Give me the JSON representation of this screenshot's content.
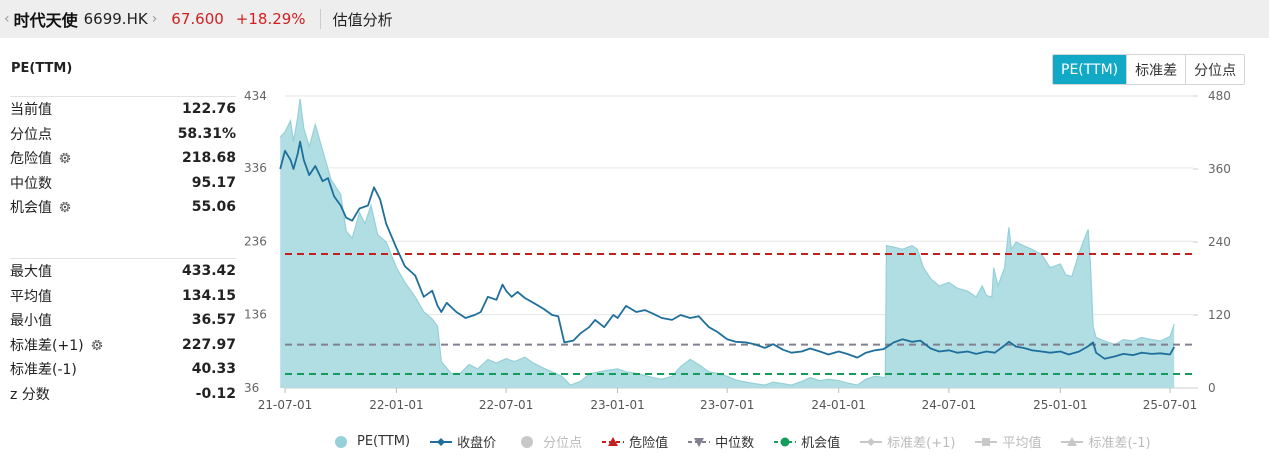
{
  "header": {
    "back_chevron": "‹",
    "stock_name": "时代天使",
    "stock_code": "6699.HK",
    "forward_chevron": "›",
    "price": "67.600",
    "change_pct": "+18.29%",
    "section": "估值分析"
  },
  "panel": {
    "title": "PE(TTM)",
    "stats_top": [
      {
        "label": "当前值",
        "value": "122.76",
        "gear": false
      },
      {
        "label": "分位点",
        "value": "58.31%",
        "gear": false
      },
      {
        "label": "危险值",
        "value": "218.68",
        "gear": true
      },
      {
        "label": "中位数",
        "value": "95.17",
        "gear": false
      },
      {
        "label": "机会值",
        "value": "55.06",
        "gear": true
      }
    ],
    "stats_bottom": [
      {
        "label": "最大值",
        "value": "433.42",
        "gear": false
      },
      {
        "label": "平均值",
        "value": "134.15",
        "gear": false
      },
      {
        "label": "最小值",
        "value": "36.57",
        "gear": false
      },
      {
        "label": "标准差(+1)",
        "value": "227.97",
        "gear": true
      },
      {
        "label": "标准差(-1)",
        "value": "40.33",
        "gear": false
      },
      {
        "label": "z 分数",
        "value": "-0.12",
        "gear": false
      }
    ]
  },
  "tabs": [
    {
      "label": "PE(TTM)",
      "active": true
    },
    {
      "label": "标准差",
      "active": false
    },
    {
      "label": "分位点",
      "active": false
    }
  ],
  "colors": {
    "pe_fill": "#acdce2",
    "pe_line": "#96d0d8",
    "close_line": "#1e6f9c",
    "danger": "#c21f1f",
    "median": "#808090",
    "opportunity": "#169c5a",
    "tab_active": "#12a9c6",
    "up": "#d12020",
    "disabled": "#c8c8c8"
  },
  "chart_data": {
    "type": "area",
    "x_ticks": [
      "21-07-01",
      "22-01-01",
      "22-07-01",
      "23-01-01",
      "23-07-01",
      "24-01-01",
      "24-07-01",
      "25-01-01",
      "25-07-01"
    ],
    "left_axis": {
      "ticks": [
        434,
        336,
        236,
        136,
        36
      ],
      "range": [
        36,
        434
      ]
    },
    "right_axis": {
      "ticks": [
        480,
        360,
        240,
        120,
        0
      ],
      "range": [
        0,
        480
      ]
    },
    "reference_lines": {
      "danger": 218.68,
      "median": 95.17,
      "opportunity": 55.06
    },
    "series": [
      {
        "name": "PE(TTM)",
        "axis": "left",
        "points": [
          [
            "2021-06-23",
            378
          ],
          [
            "2021-07-01",
            385
          ],
          [
            "2021-07-10",
            400
          ],
          [
            "2021-07-15",
            372
          ],
          [
            "2021-07-22",
            405
          ],
          [
            "2021-07-26",
            430
          ],
          [
            "2021-08-01",
            390
          ],
          [
            "2021-08-10",
            365
          ],
          [
            "2021-08-20",
            395
          ],
          [
            "2021-09-01",
            360
          ],
          [
            "2021-09-15",
            320
          ],
          [
            "2021-10-01",
            300
          ],
          [
            "2021-10-10",
            250
          ],
          [
            "2021-10-20",
            240
          ],
          [
            "2021-11-01",
            275
          ],
          [
            "2021-11-10",
            260
          ],
          [
            "2021-11-20",
            285
          ],
          [
            "2021-12-01",
            245
          ],
          [
            "2021-12-15",
            235
          ],
          [
            "2022-01-01",
            200
          ],
          [
            "2022-01-15",
            180
          ],
          [
            "2022-02-01",
            160
          ],
          [
            "2022-02-15",
            140
          ],
          [
            "2022-03-01",
            130
          ],
          [
            "2022-03-10",
            120
          ],
          [
            "2022-03-16",
            72
          ],
          [
            "2022-04-01",
            56
          ],
          [
            "2022-04-15",
            55
          ],
          [
            "2022-05-01",
            68
          ],
          [
            "2022-05-15",
            62
          ],
          [
            "2022-06-01",
            75
          ],
          [
            "2022-06-15",
            70
          ],
          [
            "2022-07-01",
            76
          ],
          [
            "2022-07-15",
            72
          ],
          [
            "2022-08-01",
            78
          ],
          [
            "2022-08-15",
            70
          ],
          [
            "2022-09-01",
            63
          ],
          [
            "2022-09-15",
            58
          ],
          [
            "2022-10-01",
            52
          ],
          [
            "2022-10-15",
            40
          ],
          [
            "2022-11-01",
            45
          ],
          [
            "2022-11-15",
            55
          ],
          [
            "2022-12-01",
            58
          ],
          [
            "2022-12-15",
            60
          ],
          [
            "2023-01-01",
            62
          ],
          [
            "2023-01-15",
            58
          ],
          [
            "2023-02-01",
            56
          ],
          [
            "2023-02-15",
            53
          ],
          [
            "2023-03-01",
            50
          ],
          [
            "2023-03-15",
            48
          ],
          [
            "2023-04-01",
            52
          ],
          [
            "2023-04-15",
            65
          ],
          [
            "2023-05-01",
            75
          ],
          [
            "2023-05-15",
            68
          ],
          [
            "2023-06-01",
            58
          ],
          [
            "2023-06-15",
            56
          ],
          [
            "2023-07-01",
            52
          ],
          [
            "2023-07-15",
            47
          ],
          [
            "2023-08-01",
            44
          ],
          [
            "2023-08-15",
            42
          ],
          [
            "2023-09-01",
            40
          ],
          [
            "2023-09-15",
            44
          ],
          [
            "2023-10-01",
            42
          ],
          [
            "2023-10-15",
            40
          ],
          [
            "2023-11-01",
            45
          ],
          [
            "2023-11-15",
            50
          ],
          [
            "2023-12-01",
            46
          ],
          [
            "2023-12-15",
            48
          ],
          [
            "2024-01-01",
            46
          ],
          [
            "2024-01-15",
            43
          ],
          [
            "2024-02-01",
            40
          ],
          [
            "2024-02-15",
            48
          ],
          [
            "2024-03-01",
            52
          ],
          [
            "2024-03-18",
            50
          ],
          [
            "2024-03-20",
            230
          ],
          [
            "2024-04-01",
            228
          ],
          [
            "2024-04-15",
            225
          ],
          [
            "2024-05-01",
            230
          ],
          [
            "2024-05-10",
            225
          ],
          [
            "2024-05-20",
            200
          ],
          [
            "2024-06-01",
            185
          ],
          [
            "2024-06-15",
            175
          ],
          [
            "2024-07-01",
            180
          ],
          [
            "2024-07-15",
            172
          ],
          [
            "2024-08-01",
            168
          ],
          [
            "2024-08-15",
            160
          ],
          [
            "2024-08-25",
            175
          ],
          [
            "2024-09-01",
            162
          ],
          [
            "2024-09-10",
            160
          ],
          [
            "2024-09-13",
            200
          ],
          [
            "2024-09-20",
            175
          ],
          [
            "2024-10-01",
            200
          ],
          [
            "2024-10-08",
            255
          ],
          [
            "2024-10-12",
            225
          ],
          [
            "2024-10-20",
            235
          ],
          [
            "2024-11-01",
            230
          ],
          [
            "2024-11-15",
            225
          ],
          [
            "2024-12-01",
            218
          ],
          [
            "2024-12-15",
            200
          ],
          [
            "2025-01-01",
            205
          ],
          [
            "2025-01-10",
            190
          ],
          [
            "2025-01-20",
            188
          ],
          [
            "2025-02-01",
            220
          ],
          [
            "2025-02-10",
            240
          ],
          [
            "2025-02-16",
            252
          ],
          [
            "2025-02-20",
            200
          ],
          [
            "2025-02-24",
            120
          ],
          [
            "2025-03-01",
            105
          ],
          [
            "2025-03-15",
            100
          ],
          [
            "2025-04-01",
            95
          ],
          [
            "2025-04-15",
            102
          ],
          [
            "2025-05-01",
            100
          ],
          [
            "2025-05-15",
            105
          ],
          [
            "2025-06-01",
            102
          ],
          [
            "2025-06-15",
            100
          ],
          [
            "2025-07-01",
            106
          ],
          [
            "2025-07-08",
            122.76
          ]
        ]
      },
      {
        "name": "收盘价",
        "axis": "right",
        "points": [
          [
            "2021-06-23",
            360
          ],
          [
            "2021-07-01",
            390
          ],
          [
            "2021-07-10",
            375
          ],
          [
            "2021-07-15",
            360
          ],
          [
            "2021-07-22",
            385
          ],
          [
            "2021-07-26",
            405
          ],
          [
            "2021-08-01",
            375
          ],
          [
            "2021-08-10",
            350
          ],
          [
            "2021-08-20",
            365
          ],
          [
            "2021-09-01",
            340
          ],
          [
            "2021-09-10",
            345
          ],
          [
            "2021-09-20",
            315
          ],
          [
            "2021-10-01",
            300
          ],
          [
            "2021-10-10",
            280
          ],
          [
            "2021-10-20",
            275
          ],
          [
            "2021-11-01",
            295
          ],
          [
            "2021-11-15",
            300
          ],
          [
            "2021-11-25",
            330
          ],
          [
            "2021-12-05",
            310
          ],
          [
            "2021-12-15",
            270
          ],
          [
            "2022-01-01",
            230
          ],
          [
            "2022-01-15",
            200
          ],
          [
            "2022-02-01",
            185
          ],
          [
            "2022-02-15",
            150
          ],
          [
            "2022-03-01",
            160
          ],
          [
            "2022-03-10",
            135
          ],
          [
            "2022-03-16",
            125
          ],
          [
            "2022-03-25",
            140
          ],
          [
            "2022-04-10",
            125
          ],
          [
            "2022-04-25",
            115
          ],
          [
            "2022-05-10",
            120
          ],
          [
            "2022-05-20",
            125
          ],
          [
            "2022-06-01",
            150
          ],
          [
            "2022-06-15",
            145
          ],
          [
            "2022-06-25",
            170
          ],
          [
            "2022-07-01",
            160
          ],
          [
            "2022-07-10",
            150
          ],
          [
            "2022-07-20",
            158
          ],
          [
            "2022-08-01",
            148
          ],
          [
            "2022-08-15",
            140
          ],
          [
            "2022-09-01",
            130
          ],
          [
            "2022-09-15",
            120
          ],
          [
            "2022-09-25",
            118
          ],
          [
            "2022-10-05",
            75
          ],
          [
            "2022-10-20",
            78
          ],
          [
            "2022-11-01",
            90
          ],
          [
            "2022-11-15",
            100
          ],
          [
            "2022-11-25",
            112
          ],
          [
            "2022-12-10",
            100
          ],
          [
            "2022-12-25",
            120
          ],
          [
            "2023-01-01",
            115
          ],
          [
            "2023-01-15",
            135
          ],
          [
            "2023-02-01",
            125
          ],
          [
            "2023-02-15",
            128
          ],
          [
            "2023-03-01",
            122
          ],
          [
            "2023-03-15",
            115
          ],
          [
            "2023-04-01",
            112
          ],
          [
            "2023-04-15",
            120
          ],
          [
            "2023-05-01",
            115
          ],
          [
            "2023-05-15",
            118
          ],
          [
            "2023-06-01",
            100
          ],
          [
            "2023-06-15",
            92
          ],
          [
            "2023-07-01",
            80
          ],
          [
            "2023-07-15",
            76
          ],
          [
            "2023-08-01",
            75
          ],
          [
            "2023-08-15",
            72
          ],
          [
            "2023-09-01",
            66
          ],
          [
            "2023-09-15",
            72
          ],
          [
            "2023-10-01",
            63
          ],
          [
            "2023-10-15",
            58
          ],
          [
            "2023-11-01",
            60
          ],
          [
            "2023-11-15",
            65
          ],
          [
            "2023-12-01",
            60
          ],
          [
            "2023-12-15",
            55
          ],
          [
            "2024-01-01",
            60
          ],
          [
            "2024-01-15",
            56
          ],
          [
            "2024-02-01",
            50
          ],
          [
            "2024-02-15",
            58
          ],
          [
            "2024-03-01",
            62
          ],
          [
            "2024-03-15",
            64
          ],
          [
            "2024-04-01",
            75
          ],
          [
            "2024-04-15",
            80
          ],
          [
            "2024-05-01",
            76
          ],
          [
            "2024-05-15",
            78
          ],
          [
            "2024-06-01",
            65
          ],
          [
            "2024-06-15",
            60
          ],
          [
            "2024-07-01",
            62
          ],
          [
            "2024-07-15",
            58
          ],
          [
            "2024-08-01",
            60
          ],
          [
            "2024-08-15",
            56
          ],
          [
            "2024-09-01",
            60
          ],
          [
            "2024-09-15",
            58
          ],
          [
            "2024-10-01",
            70
          ],
          [
            "2024-10-08",
            76
          ],
          [
            "2024-10-20",
            68
          ],
          [
            "2024-11-01",
            66
          ],
          [
            "2024-11-15",
            62
          ],
          [
            "2024-12-01",
            60
          ],
          [
            "2024-12-15",
            58
          ],
          [
            "2025-01-01",
            60
          ],
          [
            "2025-01-15",
            55
          ],
          [
            "2025-02-01",
            60
          ],
          [
            "2025-02-15",
            68
          ],
          [
            "2025-02-24",
            75
          ],
          [
            "2025-03-01",
            58
          ],
          [
            "2025-03-15",
            48
          ],
          [
            "2025-04-01",
            52
          ],
          [
            "2025-04-15",
            56
          ],
          [
            "2025-05-01",
            54
          ],
          [
            "2025-05-15",
            58
          ],
          [
            "2025-06-01",
            56
          ],
          [
            "2025-06-15",
            57
          ],
          [
            "2025-07-01",
            55
          ],
          [
            "2025-07-08",
            67.6
          ]
        ]
      }
    ],
    "legend": [
      {
        "name": "PE(TTM)",
        "shape": "circle",
        "color": "#96d0d8",
        "enabled": true
      },
      {
        "name": "收盘价",
        "shape": "line-diamond",
        "color": "#1e6f9c",
        "enabled": true
      },
      {
        "name": "分位点",
        "shape": "circle",
        "color": "#c8c8c8",
        "enabled": false
      },
      {
        "name": "危险值",
        "shape": "dash-triangle-up",
        "color": "#c21f1f",
        "enabled": true
      },
      {
        "name": "中位数",
        "shape": "dash-triangle-down",
        "color": "#808090",
        "enabled": true
      },
      {
        "name": "机会值",
        "shape": "dash-circle",
        "color": "#169c5a",
        "enabled": true
      },
      {
        "name": "标准差(+1)",
        "shape": "line-diamond",
        "color": "#c8c8c8",
        "enabled": false
      },
      {
        "name": "平均值",
        "shape": "line-square",
        "color": "#c8c8c8",
        "enabled": false
      },
      {
        "name": "标准差(-1)",
        "shape": "line-triangle",
        "color": "#c8c8c8",
        "enabled": false
      }
    ],
    "grid": true
  }
}
